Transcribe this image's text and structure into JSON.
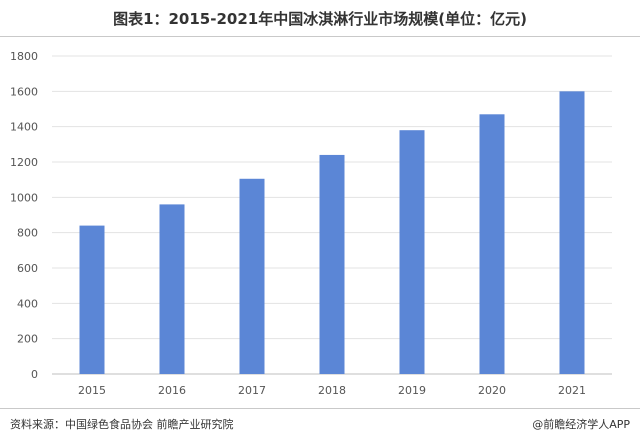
{
  "title": "图表1：2015-2021年中国冰淇淋行业市场规模(单位：亿元)",
  "footer": {
    "source": "资料来源：中国绿色食品协会 前瞻产业研究院",
    "credit": "@前瞻经济学人APP"
  },
  "colors": {
    "bar": "#5b86d6",
    "grid": "#e3e3e3",
    "axis_text": "#555555"
  },
  "chart_data": {
    "type": "bar",
    "categories": [
      "2015",
      "2016",
      "2017",
      "2018",
      "2019",
      "2020",
      "2021"
    ],
    "values": [
      840,
      960,
      1105,
      1240,
      1380,
      1470,
      1600
    ],
    "yticks": [
      0,
      200,
      400,
      600,
      800,
      1000,
      1200,
      1400,
      1600,
      1800
    ],
    "ylim": [
      0,
      1800
    ],
    "grid": true,
    "legend": "none"
  }
}
